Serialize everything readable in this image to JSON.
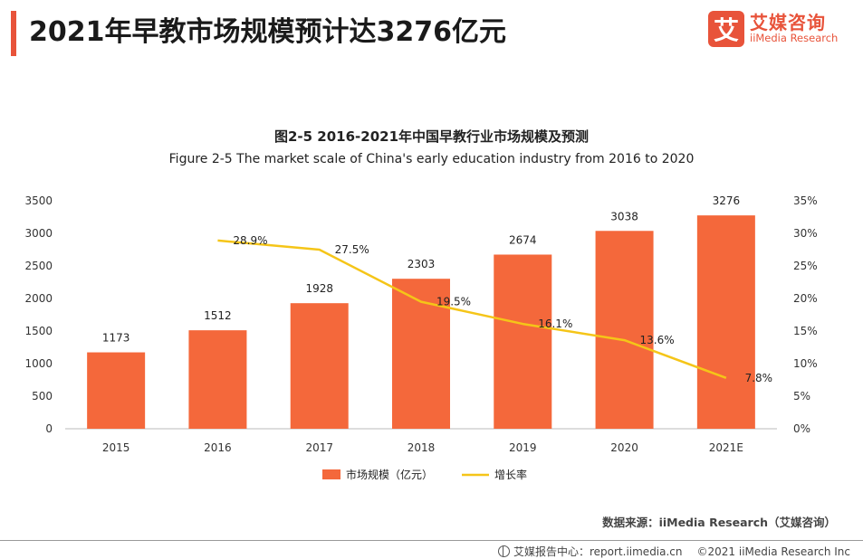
{
  "header": {
    "title": "2021年早教市场规模预计达3276亿元",
    "logo_mark": "艾",
    "logo_cn": "艾媒咨询",
    "logo_en": "iiMedia Research"
  },
  "chart_data": {
    "type": "bar",
    "title": "图2-5 2016-2021年中国早教行业市场规模及预测",
    "subtitle": "Figure 2-5 The market scale of China's early education industry from 2016 to 2020",
    "categories": [
      "2015",
      "2016",
      "2017",
      "2018",
      "2019",
      "2020",
      "2021E"
    ],
    "series": [
      {
        "name": "市场规模（亿元）",
        "type": "bar",
        "axis": "left",
        "color": "#f4683b",
        "values": [
          1173,
          1512,
          1928,
          2303,
          2674,
          3038,
          3276
        ],
        "labels": [
          "1173",
          "1512",
          "1928",
          "2303",
          "2674",
          "3038",
          "3276"
        ]
      },
      {
        "name": "增长率",
        "type": "line",
        "axis": "right",
        "color": "#f5c518",
        "values": [
          null,
          28.9,
          27.5,
          19.5,
          16.1,
          13.6,
          7.8
        ],
        "labels": [
          "",
          "28.9%",
          "27.5%",
          "19.5%",
          "16.1%",
          "13.6%",
          "7.8%"
        ]
      }
    ],
    "y_left": {
      "ylim": [
        0,
        3500
      ],
      "ticks": [
        "0",
        "500",
        "1000",
        "1500",
        "2000",
        "2500",
        "3000",
        "3500"
      ]
    },
    "y_right": {
      "ylim": [
        0,
        35
      ],
      "ticks": [
        "0%",
        "5%",
        "10%",
        "15%",
        "20%",
        "25%",
        "30%",
        "35%"
      ]
    },
    "grid": false,
    "legend_position": "bottom"
  },
  "source": "数据来源：iiMedia Research（艾媒咨询）",
  "footer": {
    "report": "艾媒报告中心：report.iimedia.cn",
    "copyright": "©2021  iiMedia Research  Inc"
  }
}
